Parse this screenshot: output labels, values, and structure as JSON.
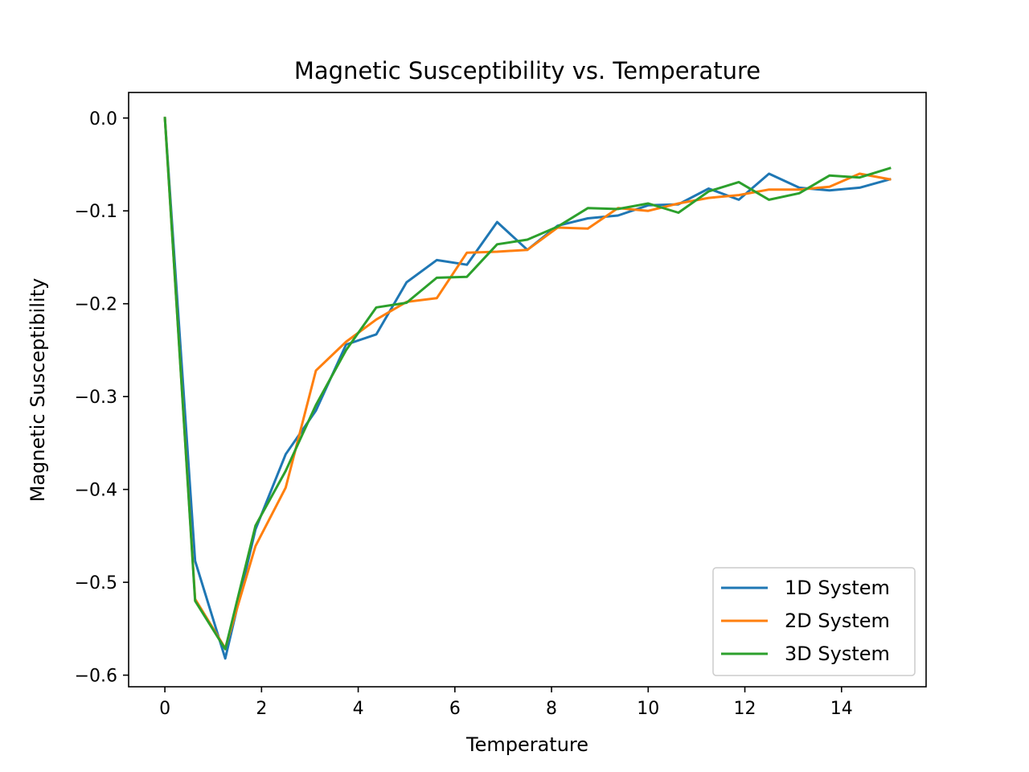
{
  "chart_data": {
    "type": "line",
    "title": "Magnetic Susceptibility vs. Temperature",
    "xlabel": "Temperature",
    "ylabel": "Magnetic Susceptibility",
    "xlim": [
      -0.75,
      15.75
    ],
    "ylim": [
      -0.6125,
      0.0275
    ],
    "x_ticks": [
      0,
      2,
      4,
      6,
      8,
      10,
      12,
      14
    ],
    "x_tick_labels": [
      "0",
      "2",
      "4",
      "6",
      "8",
      "10",
      "12",
      "14"
    ],
    "y_ticks": [
      0.0,
      -0.1,
      -0.2,
      -0.3,
      -0.4,
      -0.5,
      -0.6
    ],
    "y_tick_labels": [
      "0.0",
      "−0.1",
      "−0.2",
      "−0.3",
      "−0.4",
      "−0.5",
      "−0.6"
    ],
    "grid": false,
    "legend_position": "lower-right",
    "x": [
      0,
      0.625,
      1.25,
      1.875,
      2.5,
      3.125,
      3.75,
      4.375,
      5.0,
      5.625,
      6.25,
      6.875,
      7.5,
      8.125,
      8.75,
      9.375,
      10.0,
      10.625,
      11.25,
      11.875,
      12.5,
      13.125,
      13.75,
      14.375,
      15.0
    ],
    "series": [
      {
        "name": "1D System",
        "color": "#1f77b4",
        "values": [
          0.0,
          -0.477,
          -0.582,
          -0.443,
          -0.362,
          -0.315,
          -0.244,
          -0.233,
          -0.177,
          -0.153,
          -0.158,
          -0.112,
          -0.142,
          -0.116,
          -0.108,
          -0.105,
          -0.094,
          -0.093,
          -0.076,
          -0.088,
          -0.06,
          -0.075,
          -0.078,
          -0.075,
          -0.066
        ]
      },
      {
        "name": "2D System",
        "color": "#ff7f0e",
        "values": [
          0.0,
          -0.518,
          -0.571,
          -0.461,
          -0.398,
          -0.272,
          -0.241,
          -0.217,
          -0.198,
          -0.194,
          -0.145,
          -0.144,
          -0.142,
          -0.118,
          -0.119,
          -0.097,
          -0.1,
          -0.092,
          -0.086,
          -0.083,
          -0.077,
          -0.077,
          -0.074,
          -0.06,
          -0.066
        ]
      },
      {
        "name": "3D System",
        "color": "#2ca02c",
        "values": [
          0.0,
          -0.52,
          -0.572,
          -0.439,
          -0.38,
          -0.309,
          -0.25,
          -0.204,
          -0.199,
          -0.172,
          -0.171,
          -0.136,
          -0.131,
          -0.117,
          -0.097,
          -0.098,
          -0.092,
          -0.102,
          -0.079,
          -0.069,
          -0.088,
          -0.081,
          -0.062,
          -0.064,
          -0.054
        ]
      }
    ]
  }
}
